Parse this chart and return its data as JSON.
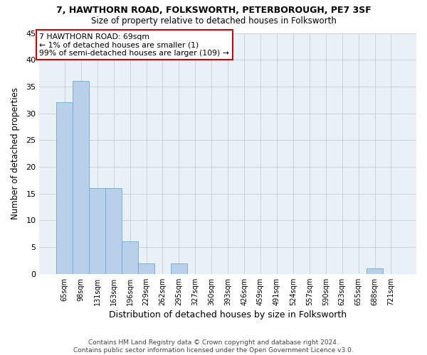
{
  "title": "7, HAWTHORN ROAD, FOLKSWORTH, PETERBOROUGH, PE7 3SF",
  "subtitle": "Size of property relative to detached houses in Folksworth",
  "xlabel": "Distribution of detached houses by size in Folksworth",
  "ylabel": "Number of detached properties",
  "categories": [
    "65sqm",
    "98sqm",
    "131sqm",
    "163sqm",
    "196sqm",
    "229sqm",
    "262sqm",
    "295sqm",
    "327sqm",
    "360sqm",
    "393sqm",
    "426sqm",
    "459sqm",
    "491sqm",
    "524sqm",
    "557sqm",
    "590sqm",
    "623sqm",
    "655sqm",
    "688sqm",
    "721sqm"
  ],
  "values": [
    32,
    36,
    16,
    16,
    6,
    2,
    0,
    2,
    0,
    0,
    0,
    0,
    0,
    0,
    0,
    0,
    0,
    0,
    0,
    1,
    0
  ],
  "bar_color": "#b8d0ea",
  "bar_edge_color": "#6baad8",
  "grid_color": "#cccccc",
  "background_color": "#e8f0f8",
  "annotation_text": "7 HAWTHORN ROAD: 69sqm\n← 1% of detached houses are smaller (1)\n99% of semi-detached houses are larger (109) →",
  "annotation_box_color": "#ffffff",
  "annotation_box_edge_color": "#cc0000",
  "ylim": [
    0,
    45
  ],
  "yticks": [
    0,
    5,
    10,
    15,
    20,
    25,
    30,
    35,
    40,
    45
  ],
  "footer": "Contains HM Land Registry data © Crown copyright and database right 2024.\nContains public sector information licensed under the Open Government Licence v3.0."
}
